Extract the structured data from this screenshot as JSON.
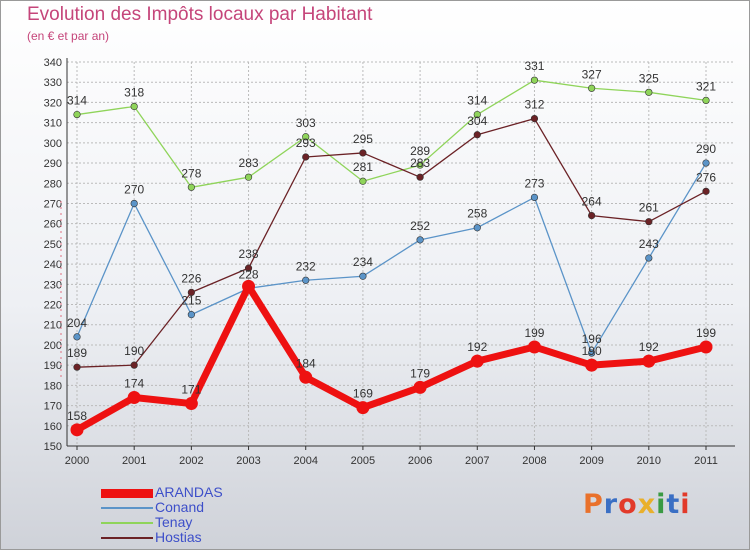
{
  "header": {
    "title": "Evolution des Impôts locaux par Habitant",
    "subtitle": "(en € et par an)"
  },
  "colors": {
    "title": "#c5457a",
    "axis": "#333333",
    "grid": "#bbbbbb",
    "legend_text": "#3d4fc9"
  },
  "chart_data": {
    "type": "line",
    "title": "Evolution des Impôts locaux par Habitant",
    "subtitle": "(en € et par an)",
    "x": [
      "2000",
      "2001",
      "2002",
      "2003",
      "2004",
      "2005",
      "2006",
      "2007",
      "2008",
      "2009",
      "2010",
      "2011"
    ],
    "ylim": [
      150,
      340
    ],
    "yticks": [
      150,
      160,
      170,
      180,
      190,
      200,
      210,
      220,
      230,
      240,
      250,
      260,
      270,
      280,
      290,
      300,
      310,
      320,
      330,
      340
    ],
    "grid": true,
    "legend_position": "bottom-left",
    "series": [
      {
        "name": "ARANDAS",
        "color": "#ee1111",
        "values": [
          158,
          174,
          171,
          229,
          184,
          169,
          179,
          192,
          199,
          190,
          192,
          199
        ],
        "labels": [
          "158",
          "174",
          "171",
          "",
          "184",
          "169",
          "179",
          "192",
          "199",
          "190",
          "192",
          "199"
        ]
      },
      {
        "name": "Conand",
        "color": "#5b94c8",
        "values": [
          204,
          270,
          215,
          228,
          232,
          234,
          252,
          258,
          273,
          196,
          243,
          290
        ],
        "labels": [
          "204",
          "270",
          "215",
          "228",
          "232",
          "234",
          "252",
          "258",
          "273",
          "196",
          "243",
          "290"
        ]
      },
      {
        "name": "Tenay",
        "color": "#8fd45a",
        "values": [
          314,
          318,
          278,
          283,
          303,
          281,
          289,
          314,
          331,
          327,
          325,
          321
        ],
        "labels": [
          "314",
          "318",
          "278",
          "283",
          "303",
          "281",
          "289",
          "314",
          "331",
          "327",
          "325",
          "321"
        ]
      },
      {
        "name": "Hostias",
        "color": "#6b2226",
        "values": [
          189,
          190,
          226,
          238,
          293,
          295,
          283,
          304,
          312,
          264,
          261,
          276
        ],
        "labels": [
          "189",
          "190",
          "226",
          "238",
          "293",
          "295",
          "283",
          "304",
          "312",
          "264",
          "261",
          "276"
        ]
      }
    ]
  },
  "logo": {
    "text": "Proxiti",
    "colors": [
      "#e9712b",
      "#3a6fc4",
      "#e23a2a",
      "#e9b02b",
      "#3a9a43",
      "#3a6fc4",
      "#e23a2a"
    ]
  }
}
